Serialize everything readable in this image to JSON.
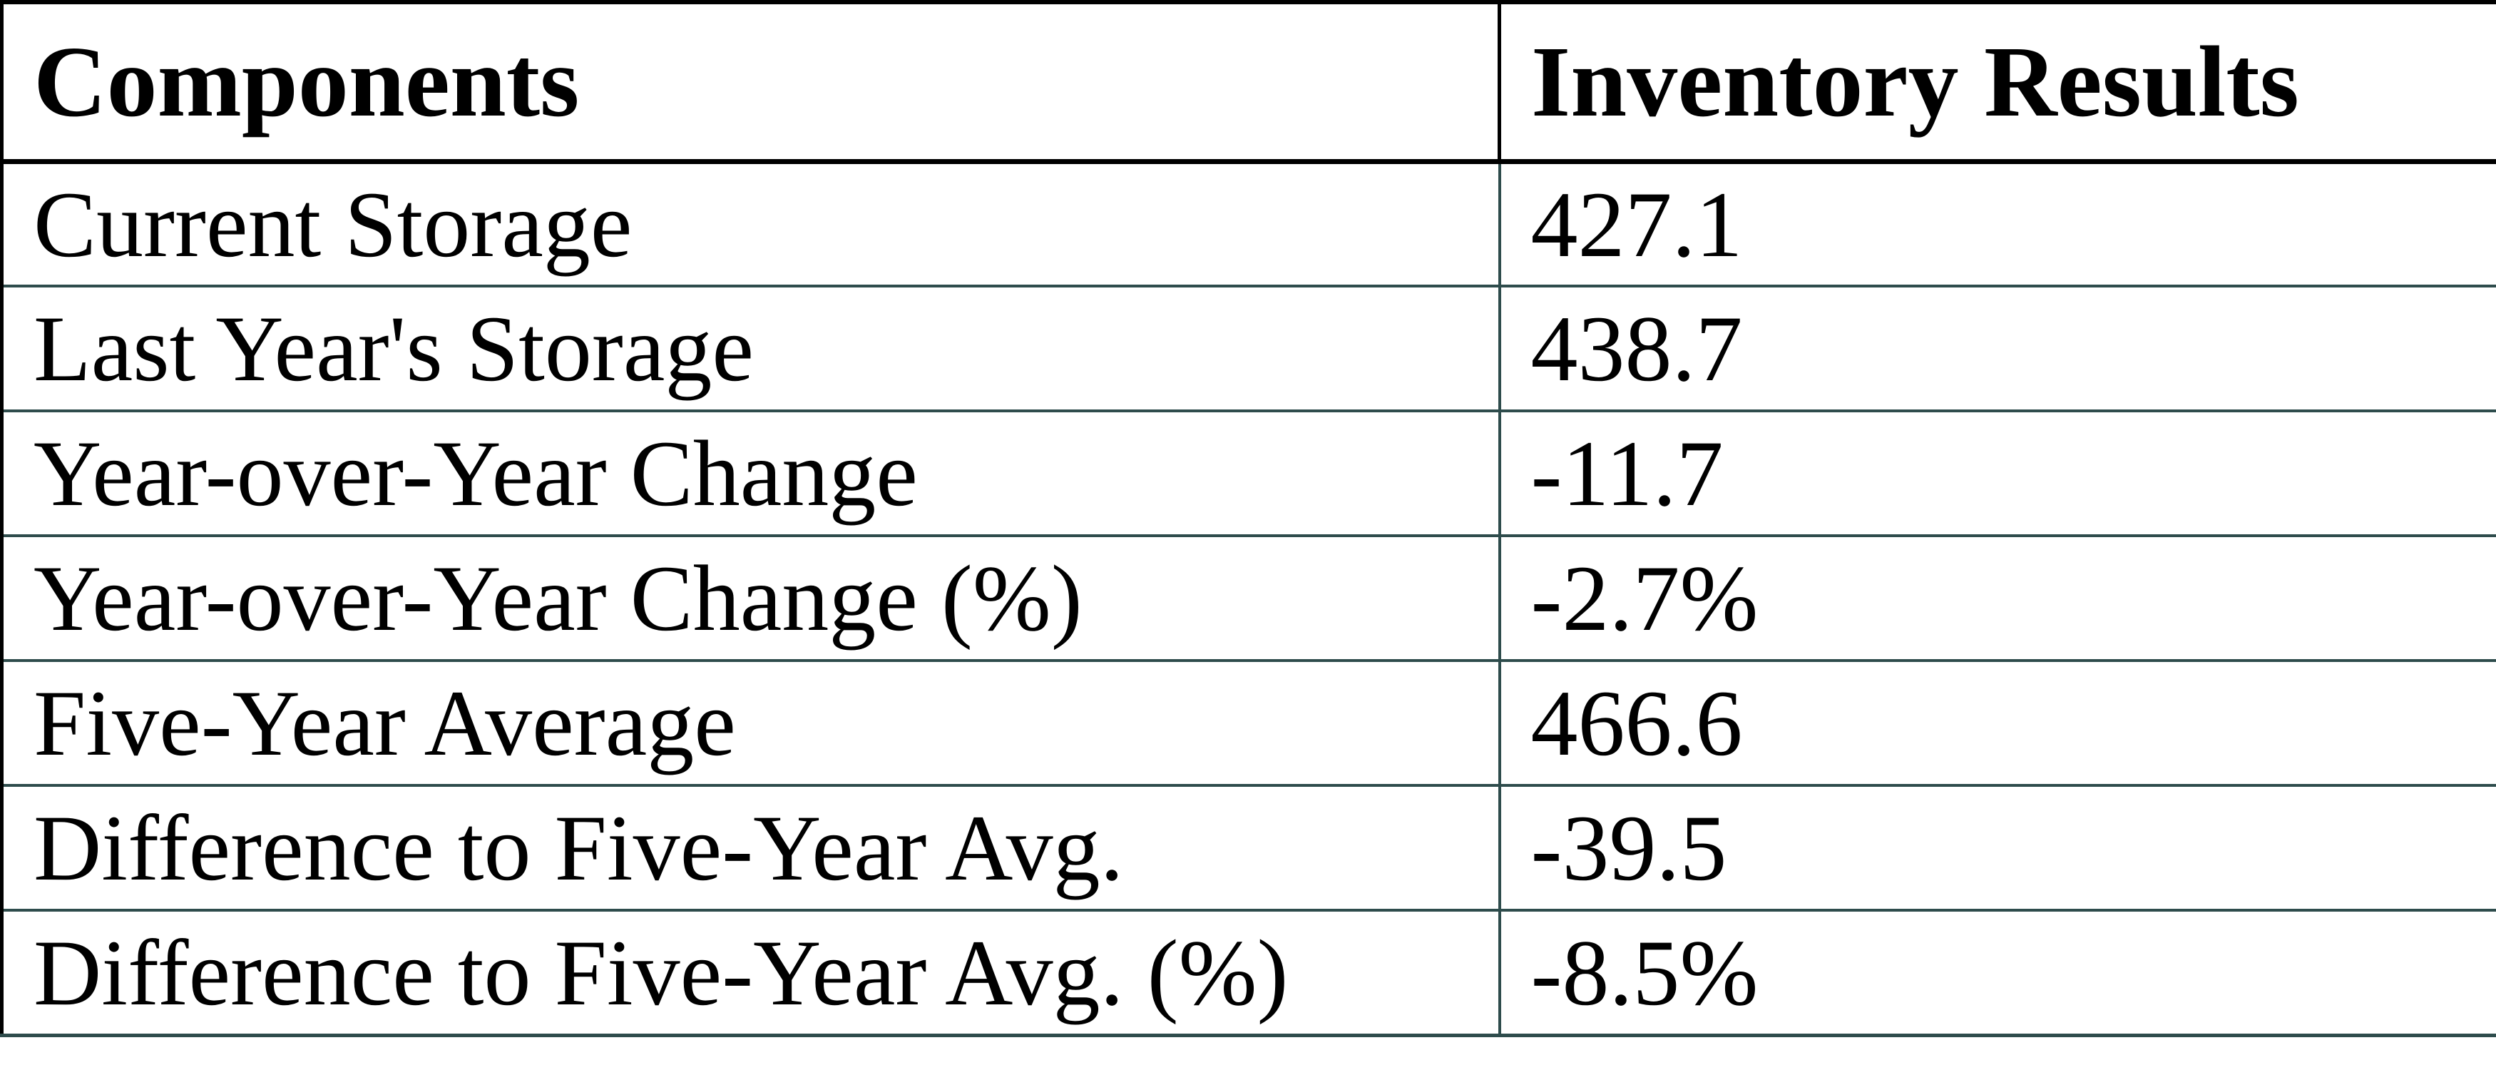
{
  "chart_data": {
    "type": "table",
    "columns": [
      "Components",
      "Inventory Results"
    ],
    "rows": [
      {
        "label": "Current Storage",
        "value": "427.1"
      },
      {
        "label": "Last Year's Storage",
        "value": "438.7"
      },
      {
        "label": "Year-over-Year Change",
        "value": "-11.7"
      },
      {
        "label": "Year-over-Year Change (%)",
        "value": "-2.7%"
      },
      {
        "label": "Five-Year Average",
        "value": "466.6"
      },
      {
        "label": "Difference to Five-Year Avg.",
        "value": "-39.5"
      },
      {
        "label": "Difference to Five-Year Avg. (%)",
        "value": "-8.5%"
      }
    ]
  },
  "colors": {
    "frame": "#000000",
    "grid": "#2e4c4c",
    "text": "#000000",
    "background": "#ffffff"
  }
}
